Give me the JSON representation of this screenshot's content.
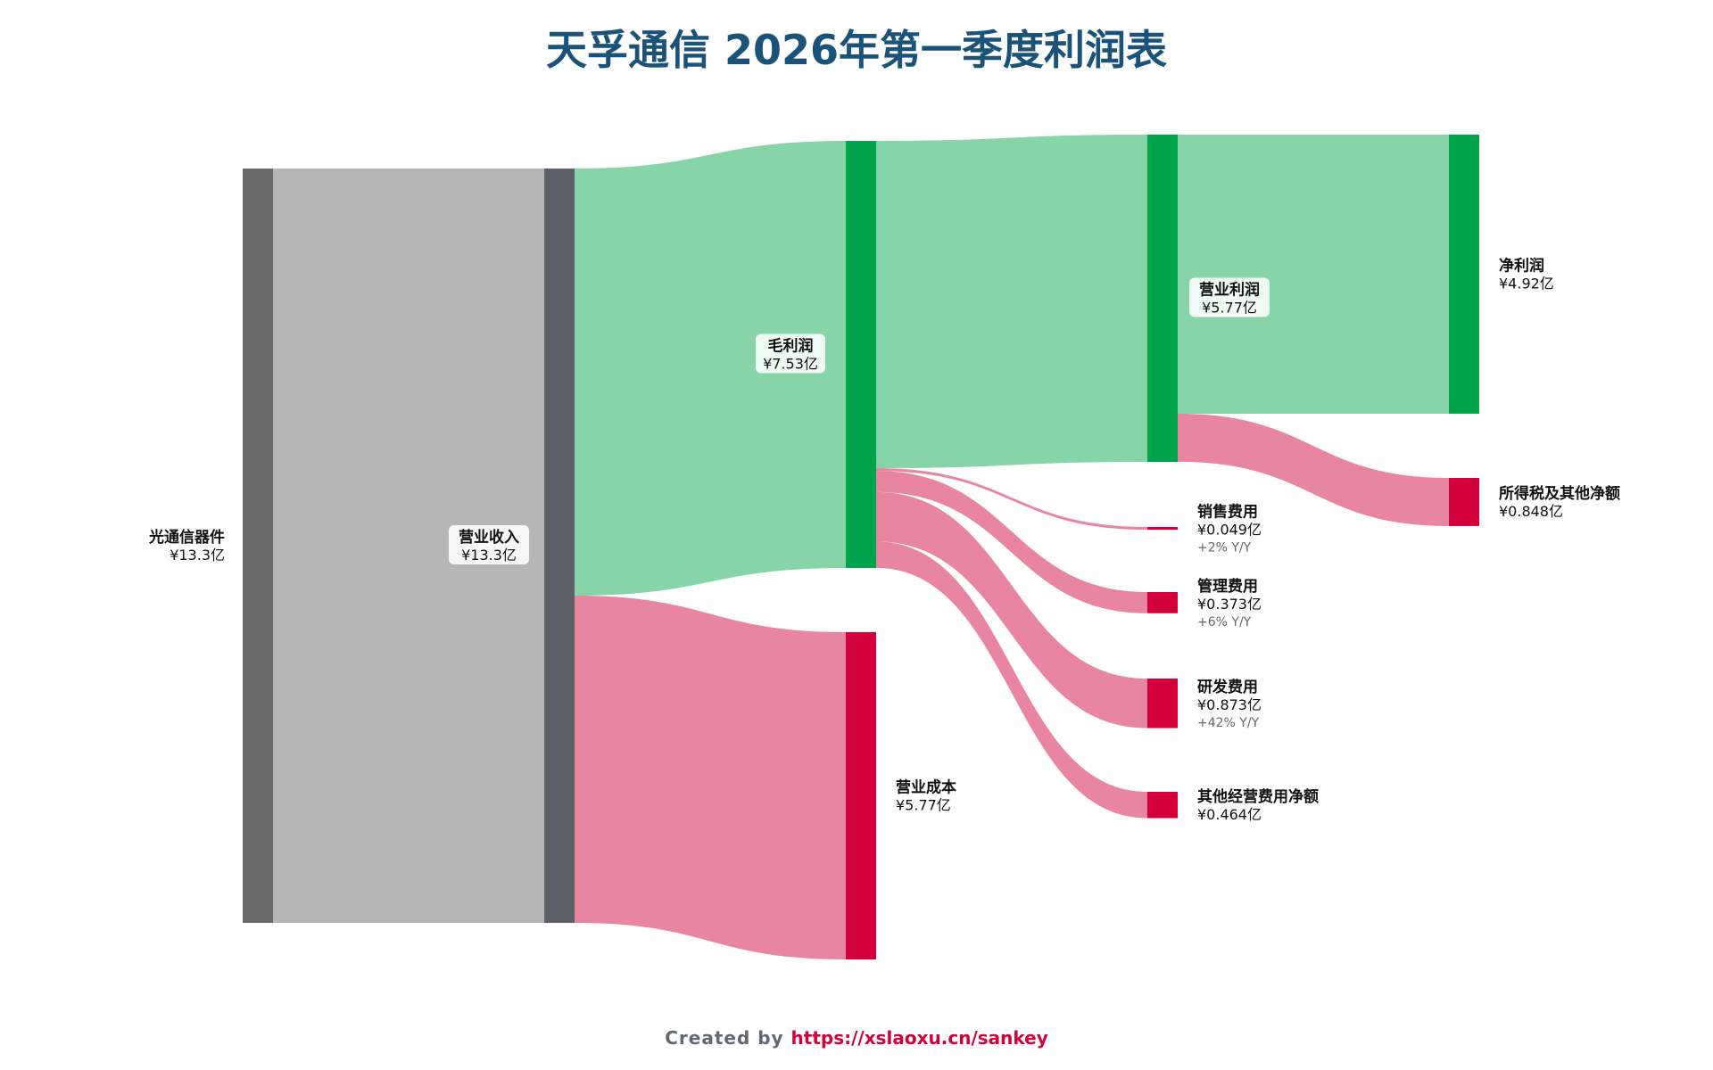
{
  "title": "天孚通信 2026年第一季度利润表",
  "footer": {
    "prefix": "Created by ",
    "link": "https://xslaoxu.cn/sankey"
  },
  "colors": {
    "source_node": "#6b6b6b",
    "source_link": "#b6b6b6",
    "revenue_node": "#5c6068",
    "profit_node": "#00a34a",
    "profit_link": "#87d4a8",
    "cost_node": "#d1003b",
    "cost_link": "#e886a2",
    "title": "#1b5278",
    "footer_link": "#d2003c"
  },
  "chart_data": {
    "type": "sankey",
    "unit": "亿",
    "currency": "¥",
    "nodes": [
      {
        "id": "optical",
        "name": "光通信器件",
        "value_label": "¥13.3亿",
        "value": 13.3,
        "kind": "source"
      },
      {
        "id": "revenue",
        "name": "营业收入",
        "value_label": "¥13.3亿",
        "value": 13.3,
        "kind": "revenue"
      },
      {
        "id": "gross",
        "name": "毛利润",
        "value_label": "¥7.53亿",
        "value": 7.53,
        "kind": "profit"
      },
      {
        "id": "cogs",
        "name": "营业成本",
        "value_label": "¥5.77亿",
        "value": 5.77,
        "kind": "cost"
      },
      {
        "id": "op",
        "name": "营业利润",
        "value_label": "¥5.77亿",
        "value": 5.77,
        "kind": "profit"
      },
      {
        "id": "sales",
        "name": "销售费用",
        "value_label": "¥0.049亿",
        "value": 0.049,
        "yoy": "+2% Y/Y",
        "kind": "cost"
      },
      {
        "id": "admin",
        "name": "管理费用",
        "value_label": "¥0.373亿",
        "value": 0.373,
        "yoy": "+6% Y/Y",
        "kind": "cost"
      },
      {
        "id": "rnd",
        "name": "研发费用",
        "value_label": "¥0.873亿",
        "value": 0.873,
        "yoy": "+42% Y/Y",
        "kind": "cost"
      },
      {
        "id": "other",
        "name": "其他经营费用净额",
        "value_label": "¥0.464亿",
        "value": 0.464,
        "kind": "cost"
      },
      {
        "id": "net",
        "name": "净利润",
        "value_label": "¥4.92亿",
        "value": 4.92,
        "kind": "profit"
      },
      {
        "id": "tax",
        "name": "所得税及其他净额",
        "value_label": "¥0.848亿",
        "value": 0.848,
        "kind": "cost"
      }
    ],
    "links": [
      {
        "source": "optical",
        "target": "revenue",
        "value": 13.3
      },
      {
        "source": "revenue",
        "target": "gross",
        "value": 7.53
      },
      {
        "source": "revenue",
        "target": "cogs",
        "value": 5.77
      },
      {
        "source": "gross",
        "target": "op",
        "value": 5.77
      },
      {
        "source": "gross",
        "target": "sales",
        "value": 0.049
      },
      {
        "source": "gross",
        "target": "admin",
        "value": 0.373
      },
      {
        "source": "gross",
        "target": "rnd",
        "value": 0.873
      },
      {
        "source": "gross",
        "target": "other",
        "value": 0.464
      },
      {
        "source": "op",
        "target": "net",
        "value": 4.92
      },
      {
        "source": "op",
        "target": "tax",
        "value": 0.848
      }
    ]
  }
}
